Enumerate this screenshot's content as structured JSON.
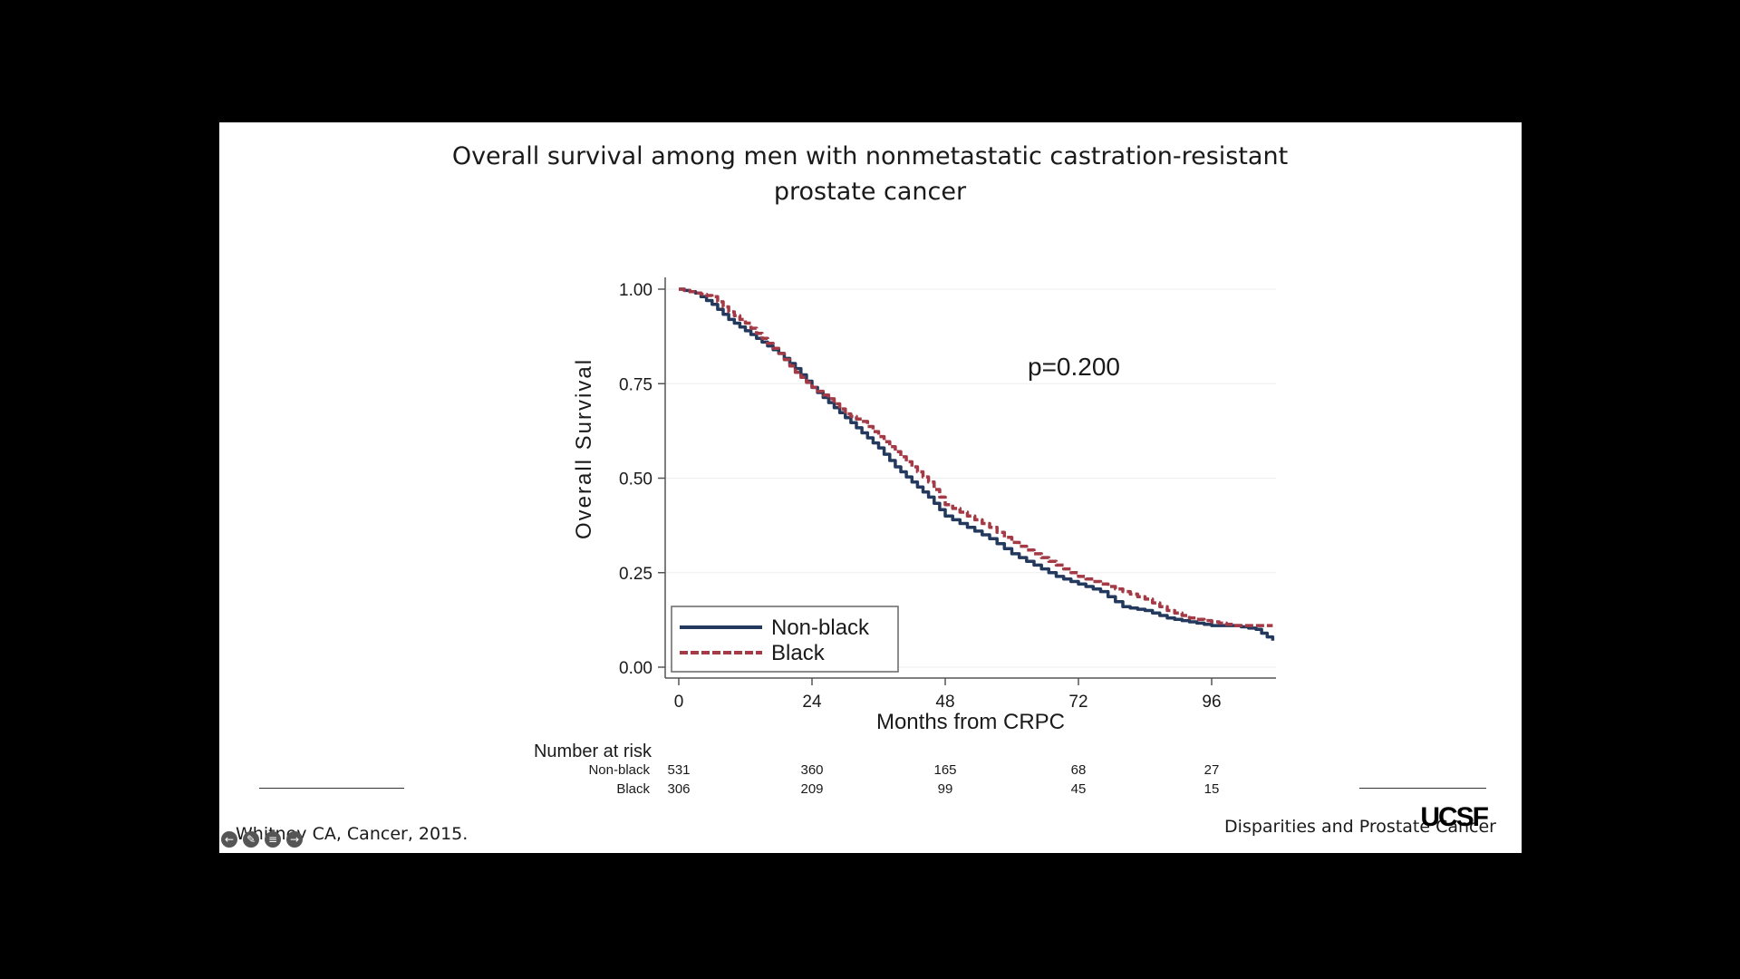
{
  "slide": {
    "title_line1": "Overall survival among men with nonmetastatic castration-resistant",
    "title_line2": "prostate cancer",
    "citation": "Whitney CA, Cancer, 2015.",
    "footer": "Disparities and Prostate Cancer",
    "logo": "UCSF",
    "controls": [
      "back-icon",
      "pencil-icon",
      "menu-icon",
      "forward-icon"
    ]
  },
  "chart_data": {
    "type": "line",
    "xlabel": "Months from CRPC",
    "ylabel": "Overall Survival",
    "xlim": [
      0,
      110
    ],
    "ylim": [
      0,
      1.0
    ],
    "x_ticks": [
      0,
      24,
      48,
      72,
      96
    ],
    "y_ticks": [
      "0.00",
      "0.25",
      "0.50",
      "0.75",
      "1.00"
    ],
    "annotation": "p=0.200",
    "legend_position": "bottom-left",
    "series": [
      {
        "name": "Non-black",
        "color": "#24395e",
        "dash": "solid",
        "points": [
          [
            0,
            1.0
          ],
          [
            3,
            0.99
          ],
          [
            6,
            0.96
          ],
          [
            9,
            0.92
          ],
          [
            12,
            0.89
          ],
          [
            15,
            0.86
          ],
          [
            18,
            0.83
          ],
          [
            21,
            0.79
          ],
          [
            24,
            0.74
          ],
          [
            27,
            0.7
          ],
          [
            30,
            0.66
          ],
          [
            33,
            0.62
          ],
          [
            36,
            0.58
          ],
          [
            39,
            0.53
          ],
          [
            42,
            0.49
          ],
          [
            45,
            0.45
          ],
          [
            48,
            0.4
          ],
          [
            52,
            0.37
          ],
          [
            56,
            0.34
          ],
          [
            60,
            0.3
          ],
          [
            64,
            0.27
          ],
          [
            68,
            0.24
          ],
          [
            72,
            0.22
          ],
          [
            76,
            0.2
          ],
          [
            80,
            0.16
          ],
          [
            84,
            0.15
          ],
          [
            88,
            0.13
          ],
          [
            92,
            0.12
          ],
          [
            96,
            0.11
          ],
          [
            100,
            0.11
          ],
          [
            104,
            0.1
          ],
          [
            107,
            0.07
          ]
        ]
      },
      {
        "name": "Black",
        "color": "#a33a45",
        "dash": "dashed",
        "points": [
          [
            0,
            1.0
          ],
          [
            3,
            0.99
          ],
          [
            6,
            0.98
          ],
          [
            9,
            0.94
          ],
          [
            12,
            0.91
          ],
          [
            15,
            0.87
          ],
          [
            18,
            0.83
          ],
          [
            21,
            0.78
          ],
          [
            24,
            0.74
          ],
          [
            27,
            0.71
          ],
          [
            30,
            0.67
          ],
          [
            33,
            0.65
          ],
          [
            36,
            0.61
          ],
          [
            39,
            0.57
          ],
          [
            42,
            0.53
          ],
          [
            45,
            0.49
          ],
          [
            48,
            0.43
          ],
          [
            52,
            0.4
          ],
          [
            56,
            0.37
          ],
          [
            60,
            0.33
          ],
          [
            64,
            0.3
          ],
          [
            68,
            0.27
          ],
          [
            72,
            0.24
          ],
          [
            76,
            0.22
          ],
          [
            80,
            0.2
          ],
          [
            84,
            0.18
          ],
          [
            88,
            0.15
          ],
          [
            92,
            0.13
          ],
          [
            96,
            0.12
          ],
          [
            100,
            0.11
          ],
          [
            104,
            0.11
          ],
          [
            107,
            0.11
          ]
        ]
      }
    ],
    "risk_table": {
      "header": "Number at risk",
      "rows": [
        {
          "group": "Non-black",
          "counts": [
            "531",
            "360",
            "165",
            "68",
            "27"
          ]
        },
        {
          "group": "Black",
          "counts": [
            "306",
            "209",
            "99",
            "45",
            "15"
          ]
        }
      ]
    }
  }
}
